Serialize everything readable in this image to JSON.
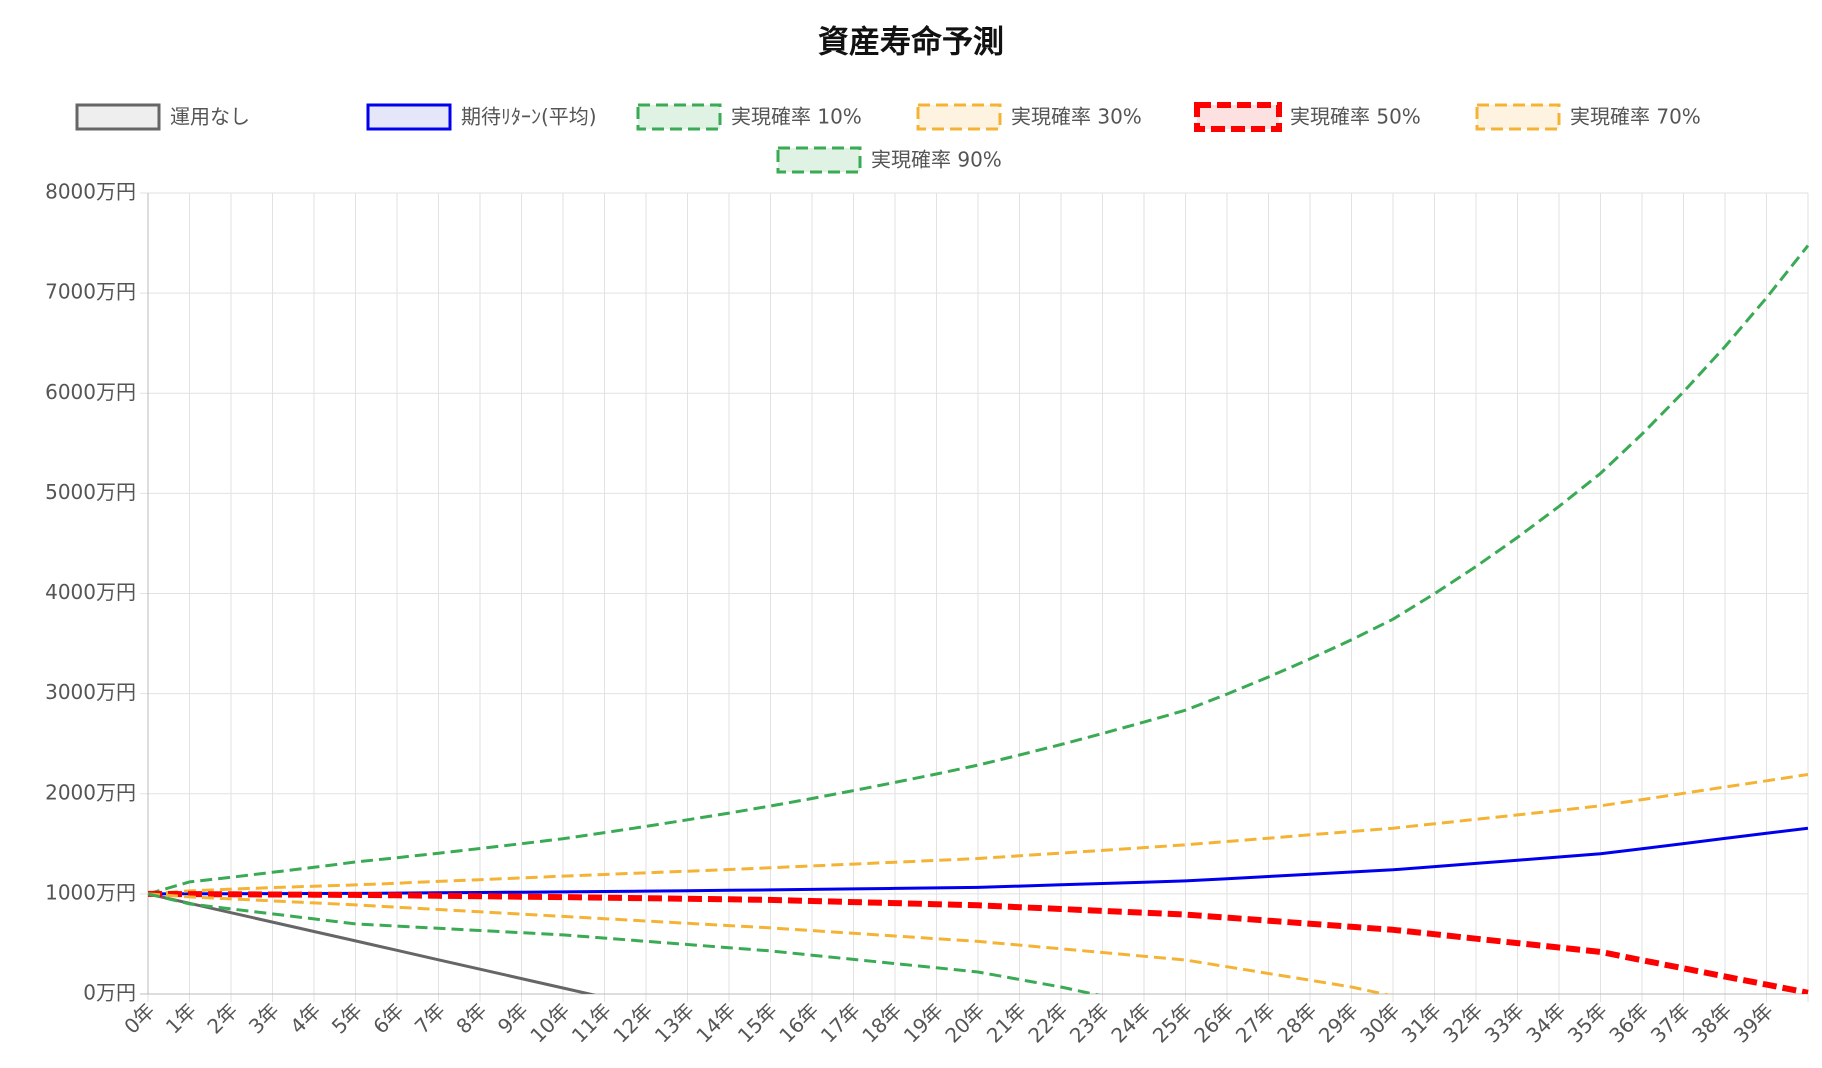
{
  "chart_data": {
    "type": "line",
    "title": "資産寿命予測",
    "categories": [
      "0年",
      "1年",
      "2年",
      "3年",
      "4年",
      "5年",
      "6年",
      "7年",
      "8年",
      "9年",
      "10年",
      "11年",
      "12年",
      "13年",
      "14年",
      "15年",
      "16年",
      "17年",
      "18年",
      "19年",
      "20年",
      "21年",
      "22年",
      "23年",
      "24年",
      "25年",
      "26年",
      "27年",
      "28年",
      "29年",
      "30年",
      "31年",
      "32年",
      "33年",
      "34年",
      "35年",
      "36年",
      "37年",
      "38年",
      "39年",
      null
    ],
    "ylim": [
      0,
      8000
    ],
    "yticks": [
      {
        "value": 0,
        "label": "0万円"
      },
      {
        "value": 1000,
        "label": "1000万円"
      },
      {
        "value": 2000,
        "label": "2000万円"
      },
      {
        "value": 3000,
        "label": "3000万円"
      },
      {
        "value": 4000,
        "label": "4000万円"
      },
      {
        "value": 5000,
        "label": "5000万円"
      },
      {
        "value": 6000,
        "label": "6000万円"
      },
      {
        "value": 7000,
        "label": "7000万円"
      },
      {
        "value": 8000,
        "label": "8000万円"
      }
    ],
    "grid": true,
    "legend": "top",
    "series": [
      {
        "name": "運用なし",
        "color": "#666666",
        "fill": "#eeeeee",
        "dashed": false,
        "width": 3,
        "values": [
          1000,
          906,
          812,
          718,
          624,
          530,
          436,
          342,
          248,
          154,
          60,
          -34,
          null,
          null,
          null,
          null,
          null,
          null,
          null,
          null,
          null,
          null,
          null,
          null,
          null,
          null,
          null,
          null,
          null,
          null,
          null,
          null,
          null,
          null,
          null,
          null,
          null,
          null,
          null,
          null,
          null
        ]
      },
      {
        "name": "期待ﾘﾀｰﾝ(平均)",
        "color": "#0000ee",
        "fill": "#e6e6fa",
        "dashed": false,
        "width": 3,
        "values": [
          1000,
          1001,
          1002,
          1003,
          1004,
          1005,
          1008,
          1011,
          1014,
          1017,
          1020,
          1024,
          1028,
          1032,
          1036,
          1040,
          1045,
          1050,
          1055,
          1060,
          1065,
          1078,
          1091,
          1104,
          1117,
          1130,
          1152,
          1174,
          1196,
          1218,
          1240,
          1272,
          1304,
          1336,
          1368,
          1400,
          1451,
          1502,
          1554,
          1605,
          1656
        ]
      },
      {
        "name": "実現確率 10%",
        "color": "#3aaa55",
        "fill": "#dff2e3",
        "dashed": true,
        "width": 3,
        "values": [
          1000,
          1120,
          1166,
          1215,
          1265,
          1318,
          1361,
          1406,
          1453,
          1501,
          1551,
          1612,
          1674,
          1740,
          1807,
          1878,
          1953,
          2031,
          2113,
          2197,
          2286,
          2387,
          2492,
          2602,
          2716,
          2834,
          2995,
          3166,
          3347,
          3538,
          3743,
          3998,
          4270,
          4560,
          4870,
          5200,
          5592,
          6013,
          6466,
          6953,
          7475
        ]
      },
      {
        "name": "実現確率 30%",
        "color": "#f5b335",
        "fill": "#fdf3e0",
        "dashed": true,
        "width": 3,
        "values": [
          1000,
          1030,
          1048,
          1063,
          1077,
          1090,
          1107,
          1125,
          1142,
          1160,
          1178,
          1194,
          1210,
          1226,
          1243,
          1260,
          1279,
          1297,
          1316,
          1334,
          1353,
          1380,
          1407,
          1434,
          1462,
          1490,
          1523,
          1556,
          1590,
          1623,
          1656,
          1700,
          1745,
          1789,
          1834,
          1880,
          1942,
          2004,
          2067,
          2129,
          2192
        ]
      },
      {
        "name": "実現確率 50%",
        "color": "#ff0000",
        "fill": "#fde0e0",
        "dashed": true,
        "width": 6,
        "values": [
          1000,
          998,
          996,
          994,
          992,
          990,
          986,
          981,
          977,
          972,
          968,
          962,
          957,
          951,
          946,
          940,
          929,
          918,
          908,
          897,
          886,
          867,
          849,
          830,
          812,
          793,
          763,
          732,
          702,
          671,
          641,
          597,
          552,
          508,
          464,
          420,
          338,
          257,
          175,
          94,
          12
        ]
      },
      {
        "name": "実現確率 70%",
        "color": "#f5b335",
        "fill": "#fdf3e0",
        "dashed": true,
        "width": 3,
        "values": [
          1000,
          970,
          950,
          930,
          910,
          890,
          867,
          844,
          821,
          798,
          775,
          752,
          729,
          706,
          683,
          660,
          633,
          606,
          579,
          552,
          525,
          488,
          451,
          414,
          377,
          340,
          273,
          205,
          138,
          70,
          -20,
          null,
          null,
          null,
          null,
          null,
          null,
          null,
          null,
          null,
          null
        ]
      },
      {
        "name": "実現確率 90%",
        "color": "#3aaa55",
        "fill": "#dff2e3",
        "dashed": true,
        "width": 3,
        "values": [
          1000,
          900,
          850,
          800,
          750,
          700,
          678,
          656,
          634,
          612,
          590,
          558,
          526,
          494,
          462,
          430,
          388,
          346,
          304,
          262,
          220,
          145,
          70,
          -20,
          null,
          null,
          null,
          null,
          null,
          null,
          null,
          null,
          null,
          null,
          null,
          null,
          null,
          null,
          null,
          null,
          null
        ]
      }
    ]
  }
}
